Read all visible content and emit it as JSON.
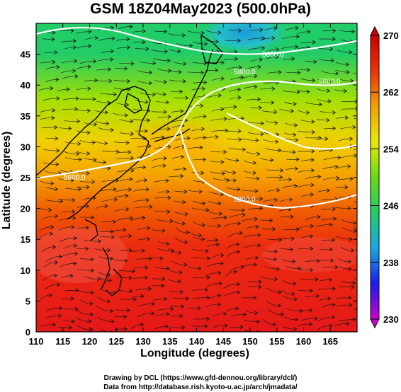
{
  "title": "GSM 18Z04May2023 (500.0hPa)",
  "x_axis": {
    "label": "Longitude (degrees)",
    "range": [
      110,
      170
    ],
    "ticks": [
      "110",
      "115",
      "120",
      "125",
      "130",
      "135",
      "140",
      "145",
      "150",
      "155",
      "160",
      "165"
    ]
  },
  "y_axis": {
    "label": "Latitude  (degrees)",
    "range": [
      0,
      50
    ],
    "ticks": [
      "0",
      "5",
      "10",
      "15",
      "20",
      "25",
      "30",
      "35",
      "40",
      "45"
    ]
  },
  "colorbar": {
    "min": 230,
    "max": 270,
    "ticks": [
      "230",
      "238",
      "246",
      "254",
      "262",
      "270"
    ],
    "colors": [
      "#cc00cc",
      "#1a1aee",
      "#15a8e6",
      "#22cc66",
      "#66dd11",
      "#e8e800",
      "#f4a000",
      "#f03000",
      "#cc0000"
    ]
  },
  "contours": [
    {
      "label": "5600.0"
    },
    {
      "label": "5800.0"
    },
    {
      "label": "5600.0"
    },
    {
      "label": "5800.0"
    },
    {
      "label": "5600.0"
    }
  ],
  "footer": {
    "line1": "Drawing by DCL (https://www.gfd-dennou.org/library/dcl/)",
    "line2": "Data from http://database.rish.kyoto-u.ac.jp/arch/jmadata/"
  }
}
